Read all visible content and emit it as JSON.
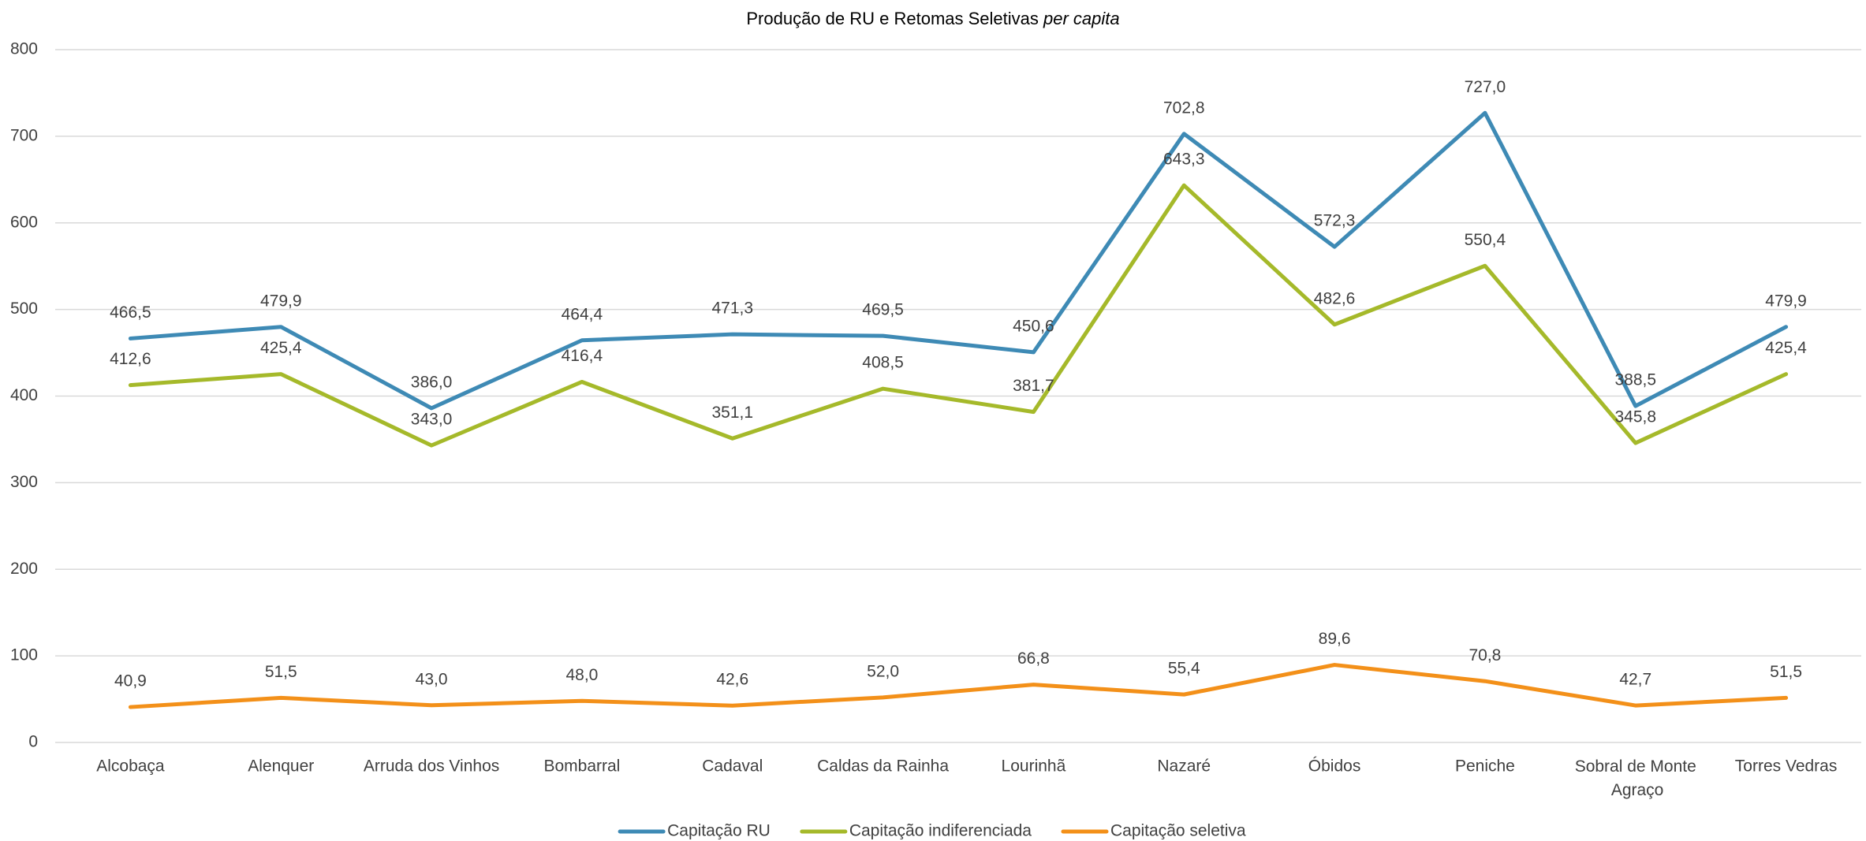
{
  "chart_data": {
    "type": "line",
    "title": "Produção de RU e Retomas Seletivas",
    "title_emphasis": "per capita",
    "categories": [
      "Alcobaça",
      "Alenquer",
      "Arruda dos Vinhos",
      "Bombarral",
      "Cadaval",
      "Caldas da Rainha",
      "Lourinhã",
      "Nazaré",
      "Óbidos",
      "Peniche",
      "Sobral de Monte Agraço",
      "Torres Vedras"
    ],
    "series": [
      {
        "name": "Capitação RU",
        "color": "#3e8ab5",
        "values": [
          466.5,
          479.9,
          386.0,
          464.4,
          471.3,
          469.5,
          450.6,
          702.8,
          572.3,
          727.0,
          388.5,
          479.9
        ],
        "value_labels": [
          "466,5",
          "479,9",
          "386,0",
          "464,4",
          "471,3",
          "469,5",
          "450,6",
          "702,8",
          "572,3",
          "727,0",
          "388,5",
          "479,9"
        ]
      },
      {
        "name": "Capitação indiferenciada",
        "color": "#a5b92a",
        "values": [
          412.6,
          425.4,
          343.0,
          416.4,
          351.1,
          408.5,
          381.7,
          643.3,
          482.6,
          550.4,
          345.8,
          425.4
        ],
        "value_labels": [
          "412,6",
          "425,4",
          "343,0",
          "416,4",
          "351,1",
          "408,5",
          "381,7",
          "643,3",
          "482,6",
          "550,4",
          "345,8",
          "425,4"
        ]
      },
      {
        "name": "Capitação seletiva",
        "color": "#f39019",
        "values": [
          40.9,
          51.5,
          43.0,
          48.0,
          42.6,
          52.0,
          66.8,
          55.4,
          89.6,
          70.8,
          42.7,
          51.5
        ],
        "value_labels": [
          "40,9",
          "51,5",
          "43,0",
          "48,0",
          "42,6",
          "52,0",
          "66,8",
          "55,4",
          "89,6",
          "70,8",
          "42,7",
          "51,5"
        ]
      }
    ],
    "ylim": [
      0,
      800
    ],
    "yticks": [
      0,
      100,
      200,
      300,
      400,
      500,
      600,
      700,
      800
    ],
    "grid": true,
    "legend": "bottom"
  }
}
